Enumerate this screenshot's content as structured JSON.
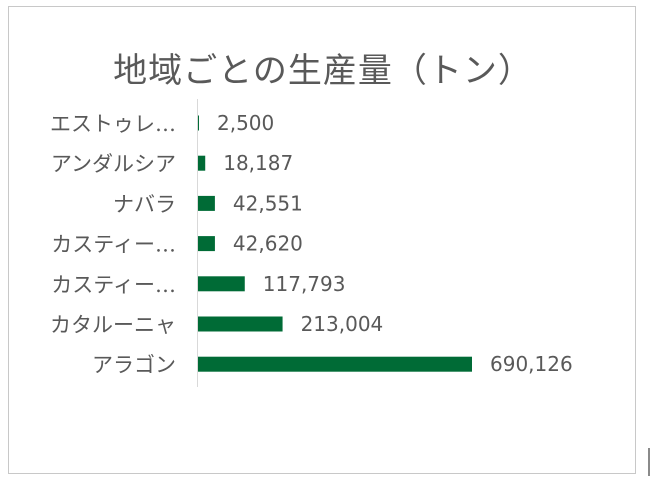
{
  "chart_data": {
    "type": "bar",
    "orientation": "horizontal",
    "title": "地域ごとの生産量（トン）",
    "categories": [
      "エストゥレ…",
      "アンダルシア",
      "ナバラ",
      "カスティー…",
      "カスティー…",
      "カタルーニャ",
      "アラゴン"
    ],
    "values": [
      2500,
      18187,
      42551,
      42620,
      117793,
      213004,
      690126
    ],
    "data_labels": [
      "2,500",
      "18,187",
      "42,551",
      "42,620",
      "117,793",
      "213,004",
      "690,126"
    ],
    "xlim": [
      0,
      690126
    ],
    "grid": false,
    "legend": "none",
    "bar_color": "#006B36"
  }
}
